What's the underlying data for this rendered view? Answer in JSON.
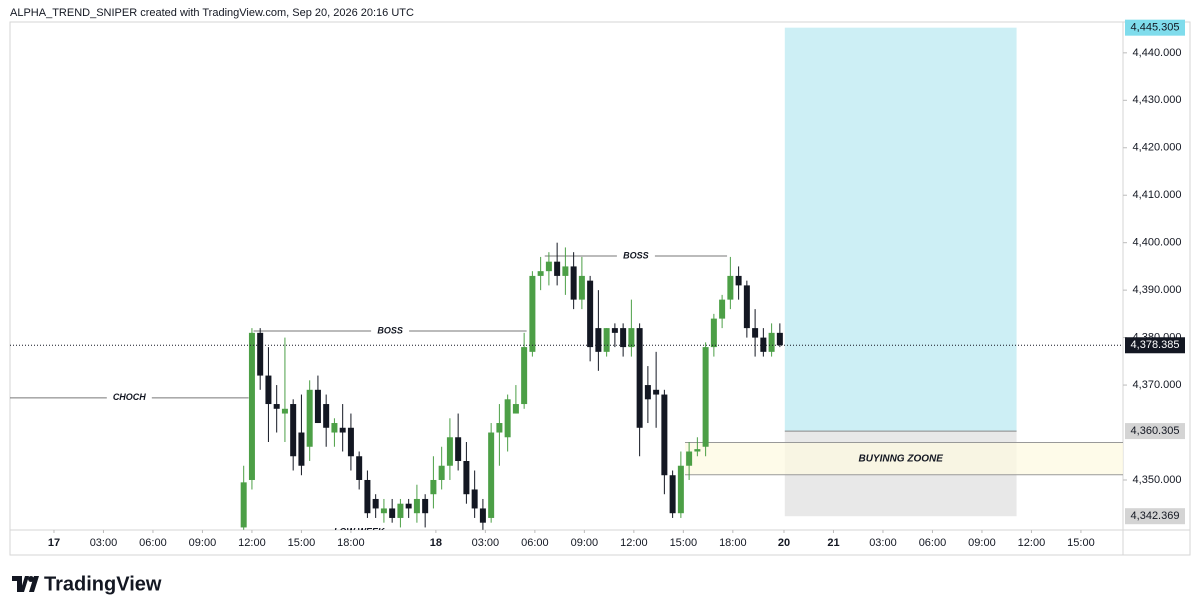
{
  "chart_data": {
    "type": "candlestick",
    "title": "ALPHA_TREND_SNIPER created with TradingView.com, Sep 20, 2026 20:16 UTC",
    "brand": "TradingView",
    "up_color": "#4c9f46",
    "down_color": "#131722",
    "x": [
      23,
      24,
      25,
      26,
      27,
      28,
      29,
      30,
      31,
      32,
      33,
      34,
      35,
      36,
      37,
      38,
      39,
      40,
      41,
      42,
      43,
      44,
      45,
      46,
      47,
      48,
      49,
      50,
      51,
      52,
      53,
      54,
      55,
      56,
      57,
      58,
      59,
      60,
      61,
      62,
      63,
      64,
      65,
      66,
      67,
      68,
      69,
      70,
      71,
      72,
      73,
      74,
      75,
      76,
      77,
      78,
      79,
      80,
      81,
      82,
      83,
      84,
      85,
      86,
      87,
      88
    ],
    "open": [
      4340,
      4350,
      4381,
      4372,
      4366,
      4364,
      4366,
      4360,
      4357,
      4369,
      4366,
      4360,
      4361,
      4361,
      4355,
      4350,
      4346,
      4343,
      4344,
      4342,
      4345,
      4343,
      4346,
      4347,
      4350,
      4353,
      4359,
      4354,
      4348,
      4344,
      4342,
      4360,
      4359,
      4364,
      4366,
      4377,
      4393,
      4394,
      4396,
      4393,
      4395,
      4388,
      4392,
      4382,
      4377,
      4382,
      4382,
      4378,
      4382,
      4370,
      4369,
      4368,
      4351,
      4343,
      4353,
      4356,
      4357,
      4378,
      4384,
      4388,
      4393,
      4391,
      4382,
      4380,
      4377,
      4381
    ],
    "high": [
      4353,
      4382,
      4382,
      4378,
      4370,
      4380,
      4367,
      4368,
      4371,
      4372,
      4368,
      4363,
      4366,
      4364,
      4356,
      4352,
      4347,
      4346,
      4346,
      4346,
      4346,
      4349,
      4347,
      4355,
      4357,
      4363,
      4364,
      4358,
      4352,
      4346,
      4362,
      4366,
      4368,
      4370,
      4381,
      4394,
      4397,
      4398,
      4400,
      4399,
      4398,
      4397,
      4393,
      4390,
      4382,
      4383,
      4383,
      4388,
      4383,
      4374,
      4377,
      4369,
      4352,
      4356,
      4358,
      4359,
      4379,
      4385,
      4389,
      4397,
      4395,
      4392,
      4386,
      4382,
      4383,
      4383
    ],
    "low": [
      4339.5,
      4348,
      4369,
      4358,
      4360,
      4358,
      4352,
      4351,
      4354,
      4362,
      4357,
      4357,
      4356,
      4352,
      4348,
      4342,
      4342,
      4341,
      4341,
      4340,
      4342,
      4341,
      4340,
      4344,
      4348,
      4350,
      4352,
      4345,
      4342,
      4339.5,
      4341,
      4353,
      4356,
      4364,
      4365,
      4376,
      4390,
      4391,
      4391,
      4389,
      4386,
      4386,
      4375,
      4373,
      4376,
      4378,
      4376,
      4376,
      4355,
      4362,
      4361,
      4347,
      4342,
      4342,
      4350,
      4355,
      4355,
      4376,
      4382,
      4386,
      4388,
      4380,
      4376,
      4376,
      4376,
      4378
    ],
    "close": [
      4349.5,
      4381,
      4372,
      4366,
      4365,
      4365,
      4355,
      4353,
      4369,
      4362,
      4361,
      4362,
      4360,
      4355,
      4350,
      4343,
      4344,
      4344,
      4342,
      4345,
      4344,
      4346,
      4343,
      4350,
      4353,
      4359,
      4354,
      4347,
      4344,
      4341,
      4360,
      4362,
      4367,
      4366,
      4378,
      4393,
      4394,
      4396,
      4393,
      4395,
      4388,
      4393,
      4378,
      4377,
      4382,
      4381,
      4378,
      4382,
      4361,
      4367,
      4368,
      4351,
      4343,
      4353,
      4356,
      4356.5,
      4378,
      4384,
      4388,
      4393,
      4391,
      4382,
      4380,
      4377,
      4381,
      4378.385
    ],
    "xlim": [
      -5.33,
      129.6
    ],
    "ylim": [
      4339.46,
      4446.5
    ],
    "xticks": [
      {
        "value": 0,
        "label": "17"
      },
      {
        "value": 6,
        "label": "03:00"
      },
      {
        "value": 12,
        "label": "06:00"
      },
      {
        "value": 18,
        "label": "09:00"
      },
      {
        "value": 24,
        "label": "12:00"
      },
      {
        "value": 30,
        "label": "15:00"
      },
      {
        "value": 36,
        "label": "18:00"
      },
      {
        "value": 46.3,
        "label": "18"
      },
      {
        "value": 52.3,
        "label": "03:00"
      },
      {
        "value": 58.3,
        "label": "06:00"
      },
      {
        "value": 64.3,
        "label": "09:00"
      },
      {
        "value": 70.3,
        "label": "12:00"
      },
      {
        "value": 76.3,
        "label": "15:00"
      },
      {
        "value": 82.3,
        "label": "18:00"
      },
      {
        "value": 88.5,
        "label": "20"
      },
      {
        "value": 94.5,
        "label": "21"
      },
      {
        "value": 100.5,
        "label": "03:00"
      },
      {
        "value": 106.5,
        "label": "06:00"
      },
      {
        "value": 112.5,
        "label": "09:00"
      },
      {
        "value": 118.5,
        "label": "12:00"
      },
      {
        "value": 124.5,
        "label": "15:00"
      }
    ],
    "yticks": [
      {
        "value": 4350,
        "label": "4,350.000"
      },
      {
        "value": 4370,
        "label": "4,370.000"
      },
      {
        "value": 4380,
        "label": "4,380.000"
      },
      {
        "value": 4390,
        "label": "4,390.000"
      },
      {
        "value": 4400,
        "label": "4,400.000"
      },
      {
        "value": 4410,
        "label": "4,410.000"
      },
      {
        "value": 4420,
        "label": "4,420.000"
      },
      {
        "value": 4430,
        "label": "4,430.000"
      },
      {
        "value": 4440,
        "label": "4,440.000"
      }
    ],
    "annotations": [
      {
        "text": "CHOCH",
        "price": 4367.3,
        "x": [
          -5.33,
          23.6
        ]
      },
      {
        "text": "BOSS",
        "price": 4381.4,
        "x": [
          24.2,
          57.3
        ]
      },
      {
        "text": "BOSS",
        "price": 4397.2,
        "x": [
          59.5,
          81.6
        ]
      },
      {
        "text": "LOW WEEK",
        "price": 4339.0,
        "x": [
          31,
          43
        ]
      }
    ],
    "zone": {
      "text": "BUYINNG ZOONE",
      "high": 4357.9,
      "low": 4351.1,
      "x": [
        76.5,
        129.6
      ]
    },
    "position": {
      "x": [
        88.6,
        116.7
      ],
      "target": {
        "value": 4445.305,
        "label": "4,445.305"
      },
      "entry": {
        "value": 4360.305,
        "label": "4,360.305"
      },
      "stop": {
        "value": 4342.369,
        "label": "4,342.369"
      }
    },
    "last_price": {
      "value": 4378.385,
      "label": "4,378.385"
    }
  }
}
